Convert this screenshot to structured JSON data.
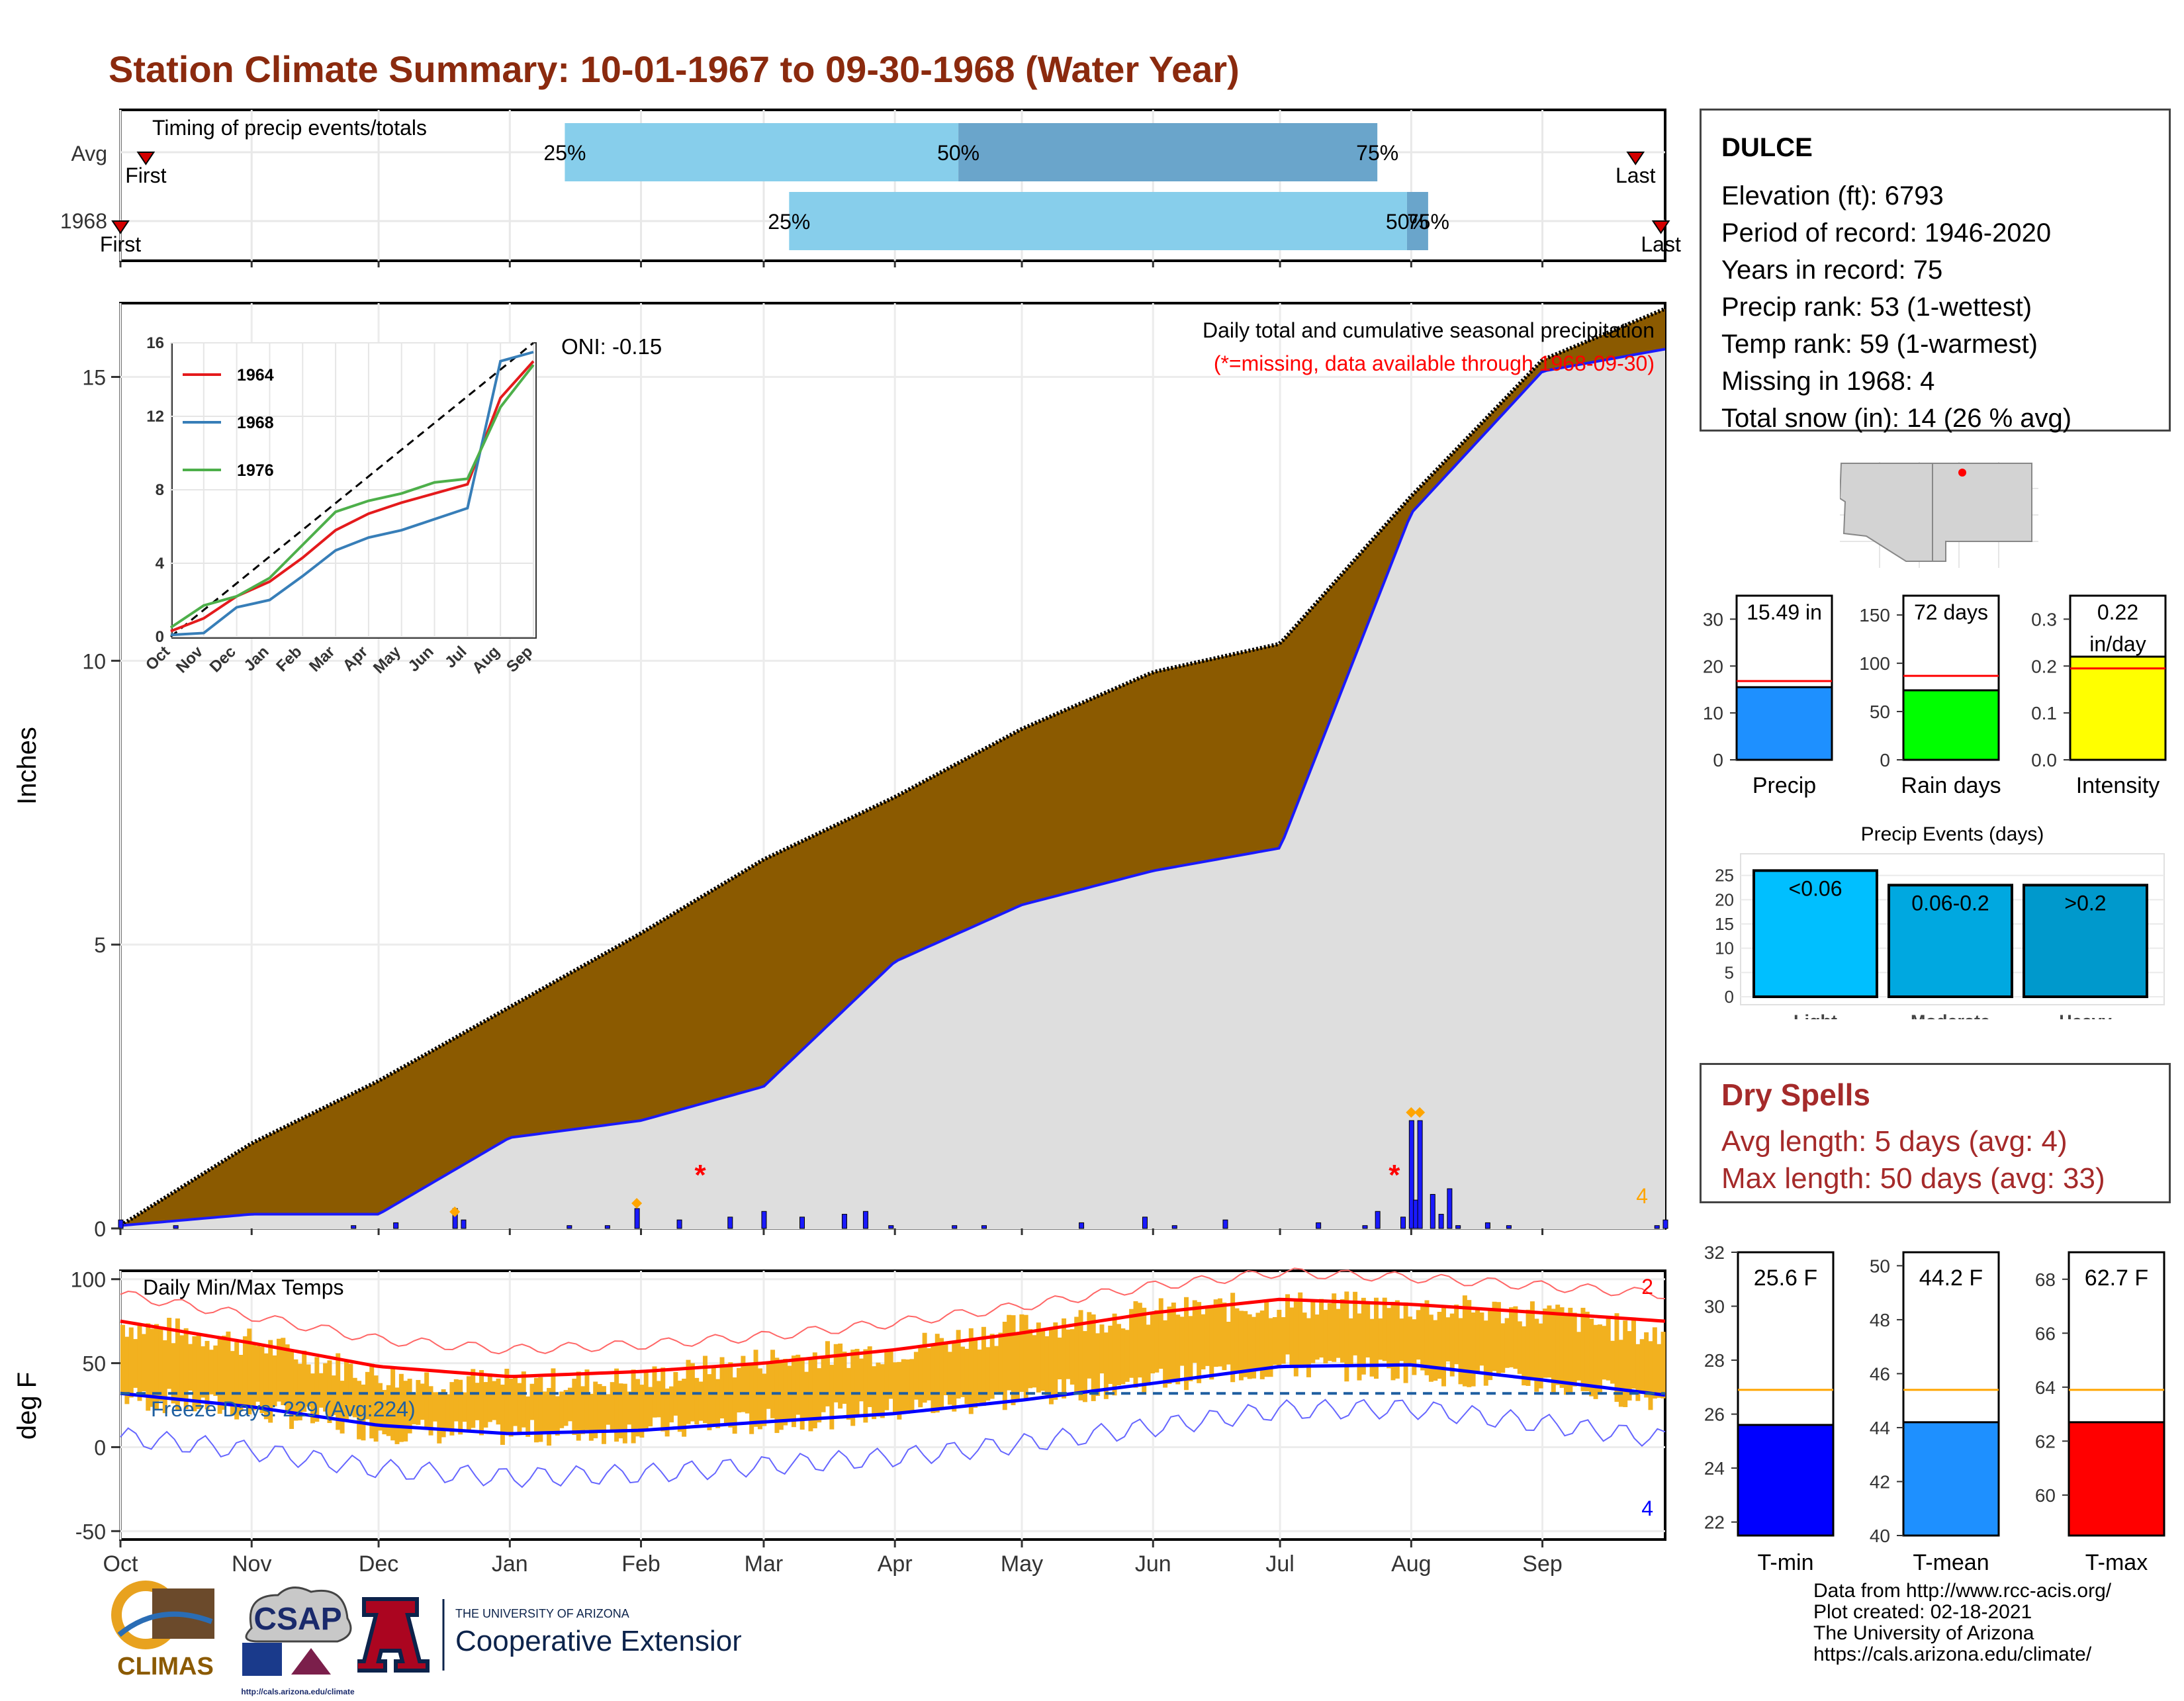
{
  "title": "Station Climate Summary: 10-01-1967 to 09-30-1968 (Water Year)",
  "colors": {
    "title": "#8b2a0e",
    "brown": "#8b5a00",
    "green": "#008000",
    "blue": "#1a1aff",
    "lightgray": "#dedede",
    "orange": "#f2b11f",
    "red": "#ff0000",
    "sky": "#87ceeb",
    "steel": "#6aa5cb"
  },
  "timing": {
    "title": "Timing of precip events/totals",
    "rows": [
      {
        "label": "Avg",
        "first_text": "First",
        "last_text": "Last",
        "p25": "25%",
        "p50": "50%",
        "p75": "75%",
        "first_doy": 6,
        "last_doy": 358,
        "q25_doy": 105,
        "q50_doy": 198,
        "q75_doy": 297
      },
      {
        "label": "1968",
        "first_text": "First",
        "last_text": "Last",
        "p25": "25%",
        "p50": "50%",
        "p75": "75%",
        "first_doy": 0,
        "last_doy": 364,
        "q25_doy": 158,
        "q50_doy": 304,
        "q75_doy": 309
      }
    ]
  },
  "months": [
    "Oct",
    "Nov",
    "Dec",
    "Jan",
    "Feb",
    "Mar",
    "Apr",
    "May",
    "Jun",
    "Jul",
    "Aug",
    "Sep"
  ],
  "precip_chart": {
    "ylabel": "Inches",
    "yticks": [
      "0",
      "5",
      "10",
      "15"
    ],
    "oni": "ONI: -0.15",
    "label1": "Daily total and cumulative seasonal precipitation",
    "label2": "(*=missing, data available through 1968-09-30)",
    "missing_count": "4"
  },
  "inset": {
    "yticks": [
      "0",
      "4",
      "8",
      "12",
      "16"
    ],
    "months": [
      "Oct",
      "Nov",
      "Dec",
      "Jan",
      "Feb",
      "Mar",
      "Apr",
      "May",
      "Jun",
      "Jul",
      "Aug",
      "Sep"
    ],
    "legend": [
      "1964",
      "1968",
      "1976"
    ]
  },
  "temp_chart": {
    "ylabel": "deg F",
    "title": "Daily Min/Max Temps",
    "yticks": [
      "100",
      "50",
      "0",
      "-50"
    ],
    "freeze": "Freeze Days: 229 (Avg:224)",
    "max_count": "2",
    "min_count": "4"
  },
  "station": {
    "name": "DULCE",
    "lines": [
      "Elevation (ft): 6793",
      "Period of record: 1946-2020",
      "Years in record: 75",
      "Precip rank: 53 (1-wettest)",
      "Temp rank: 59 (1-warmest)",
      "Missing in 1968: 4",
      "Total snow (in): 14 (26 % avg)"
    ]
  },
  "mini_bars": [
    {
      "label": "Precip",
      "value_text": "15.49 in",
      "value": 15.49,
      "avg": 16.8,
      "max": 35,
      "ticks": [
        "0",
        "10",
        "20",
        "30"
      ],
      "tickvals": [
        0,
        10,
        20,
        30
      ],
      "color": "#1e90ff"
    },
    {
      "label": "Rain days",
      "value_text": "72 days",
      "value": 72,
      "avg": 87,
      "max": 170,
      "ticks": [
        "0",
        "50",
        "100",
        "150"
      ],
      "tickvals": [
        0,
        50,
        100,
        150
      ],
      "color": "#00ff00"
    },
    {
      "label": "Intensity",
      "value_text": "0.22 in/day",
      "value": 0.22,
      "avg": 0.195,
      "max": 0.35,
      "ticks": [
        "0.0",
        "0.1",
        "0.2",
        "0.3"
      ],
      "tickvals": [
        0,
        0.1,
        0.2,
        0.3
      ],
      "color": "#ffff00"
    }
  ],
  "precip_events": {
    "title": "Precip Events (days)",
    "yticks": [
      "0",
      "5",
      "10",
      "15",
      "20",
      "25"
    ],
    "bars": [
      {
        "cat": "Light",
        "label": "<0.06",
        "value": 26,
        "color": "#00bfff"
      },
      {
        "cat": "Moderate",
        "label": "0.06-0.2",
        "value": 23,
        "color": "#00a8e0"
      },
      {
        "cat": "Heavy",
        "label": ">0.2",
        "value": 23,
        "color": "#0099cc"
      }
    ]
  },
  "dry_spells": {
    "title": "Dry Spells",
    "avg": "Avg length: 5 days (avg: 4)",
    "max": "Max length: 50 days (avg: 33)"
  },
  "temp_bars": [
    {
      "label": "T-min",
      "value_text": "25.6 F",
      "value": 25.6,
      "avg": 26.9,
      "min": 21.5,
      "max": 32,
      "ticks": [
        "22",
        "24",
        "26",
        "28",
        "30",
        "32"
      ],
      "tickvals": [
        22,
        24,
        26,
        28,
        30,
        32
      ],
      "color": "#0000ff"
    },
    {
      "label": "T-mean",
      "value_text": "44.2 F",
      "value": 44.2,
      "avg": 45.4,
      "min": 40,
      "max": 50.5,
      "ticks": [
        "40",
        "42",
        "44",
        "46",
        "48",
        "50"
      ],
      "tickvals": [
        40,
        42,
        44,
        46,
        48,
        50
      ],
      "color": "#1e90ff"
    },
    {
      "label": "T-max",
      "value_text": "62.7 F",
      "value": 62.7,
      "avg": 63.9,
      "min": 58.5,
      "max": 69,
      "ticks": [
        "60",
        "62",
        "64",
        "66",
        "68"
      ],
      "tickvals": [
        60,
        62,
        64,
        66,
        68
      ],
      "color": "#ff0000"
    }
  ],
  "credits": [
    "Data from http://www.rcc-acis.org/",
    "Plot created: 02-18-2021",
    "The University of Arizona",
    "https://cals.arizona.edu/climate/"
  ],
  "logos": {
    "climas": "CLIMAS",
    "csap": "CSAP",
    "csap_url": "http://cals.arizona.edu/climate",
    "ua_small": "THE UNIVERSITY OF ARIZONA",
    "ua_big": "Cooperative Extension"
  },
  "chart_data": [
    {
      "type": "area",
      "title": "Daily total and cumulative seasonal precipitation",
      "ylabel": "Inches",
      "ylim": [
        0,
        16.3
      ],
      "x": [
        "1967-10-01",
        "1967-11-01",
        "1967-12-01",
        "1968-01-01",
        "1968-02-01",
        "1968-03-01",
        "1968-04-01",
        "1968-05-01",
        "1968-06-01",
        "1968-07-01",
        "1968-08-01",
        "1968-09-01",
        "1968-09-30"
      ],
      "series": [
        {
          "name": "Avg",
          "values": [
            0.05,
            1.5,
            2.6,
            3.9,
            5.2,
            6.5,
            7.6,
            8.8,
            9.8,
            10.3,
            12.9,
            15.3,
            16.2
          ]
        },
        {
          "name": "1968",
          "values": [
            0.05,
            0.25,
            0.25,
            1.6,
            1.9,
            2.5,
            4.7,
            5.7,
            6.3,
            6.7,
            12.6,
            15.1,
            15.49
          ]
        }
      ],
      "daily_precip": {
        "dates": [
          "1967-10-01",
          "1967-10-14",
          "1967-11-25",
          "1967-12-05",
          "1967-12-19",
          "1967-12-21",
          "1968-01-15",
          "1968-01-24",
          "1968-01-31",
          "1968-02-10",
          "1968-02-22",
          "1968-03-01",
          "1968-03-10",
          "1968-03-20",
          "1968-03-25",
          "1968-03-31",
          "1968-04-15",
          "1968-04-22",
          "1968-05-15",
          "1968-05-30",
          "1968-06-06",
          "1968-06-18",
          "1968-07-10",
          "1968-07-21",
          "1968-07-24",
          "1968-07-30",
          "1968-08-01",
          "1968-08-02",
          "1968-08-03",
          "1968-08-06",
          "1968-08-08",
          "1968-08-10",
          "1968-08-12",
          "1968-08-19",
          "1968-08-24",
          "1968-09-28",
          "1968-09-30"
        ],
        "values": [
          0.15,
          0.05,
          0.05,
          0.1,
          0.35,
          0.15,
          0.05,
          0.05,
          0.35,
          0.15,
          0.2,
          0.3,
          0.2,
          0.25,
          0.3,
          0.05,
          0.05,
          0.05,
          0.1,
          0.2,
          0.05,
          0.15,
          0.1,
          0.05,
          0.3,
          0.2,
          1.9,
          0.5,
          1.9,
          0.6,
          0.25,
          0.7,
          0.05,
          0.1,
          0.05,
          0.05,
          0.15
        ]
      }
    },
    {
      "type": "line",
      "title": "Daily Min/Max Temps",
      "ylabel": "deg F",
      "ylim": [
        -55,
        105
      ],
      "x": [
        "1967-10-01",
        "1967-11-01",
        "1967-12-01",
        "1968-01-01",
        "1968-02-01",
        "1968-03-01",
        "1968-04-01",
        "1968-05-01",
        "1968-06-01",
        "1968-07-01",
        "1968-08-01",
        "1968-09-01",
        "1968-09-30"
      ],
      "series": [
        {
          "name": "Tmax",
          "values": [
            73,
            62,
            42,
            38,
            40,
            52,
            58,
            72,
            80,
            85,
            83,
            80,
            65
          ]
        },
        {
          "name": "Tmin",
          "values": [
            30,
            22,
            10,
            8,
            10,
            15,
            22,
            30,
            40,
            48,
            46,
            38,
            28
          ]
        },
        {
          "name": "Avg Tmax",
          "values": [
            75,
            62,
            48,
            42,
            45,
            50,
            58,
            68,
            80,
            88,
            85,
            80,
            75
          ]
        },
        {
          "name": "Avg Tmin",
          "values": [
            32,
            24,
            13,
            8,
            10,
            15,
            20,
            28,
            38,
            48,
            49,
            40,
            31
          ]
        }
      ]
    },
    {
      "type": "line",
      "title": "Cumulative precipitation analog years",
      "x": [
        "Oct",
        "Nov",
        "Dec",
        "Jan",
        "Feb",
        "Mar",
        "Apr",
        "May",
        "Jun",
        "Jul",
        "Aug",
        "Sep"
      ],
      "ylim": [
        0,
        16
      ],
      "series": [
        {
          "name": "1964",
          "values": [
            0.3,
            1.0,
            2.2,
            3.0,
            4.3,
            5.8,
            6.7,
            7.3,
            7.8,
            8.3,
            13.0,
            15.0
          ]
        },
        {
          "name": "1968",
          "values": [
            0.1,
            0.2,
            1.6,
            2.0,
            3.3,
            4.7,
            5.4,
            5.8,
            6.4,
            7.0,
            15.0,
            15.5
          ]
        },
        {
          "name": "1976",
          "values": [
            0.5,
            1.7,
            2.2,
            3.2,
            5.0,
            6.8,
            7.4,
            7.8,
            8.4,
            8.6,
            12.5,
            14.8
          ]
        }
      ]
    },
    {
      "type": "bar",
      "title": "Precip Events (days)",
      "categories": [
        "Light",
        "Moderate",
        "Heavy"
      ],
      "values": [
        26,
        23,
        23
      ]
    }
  ]
}
